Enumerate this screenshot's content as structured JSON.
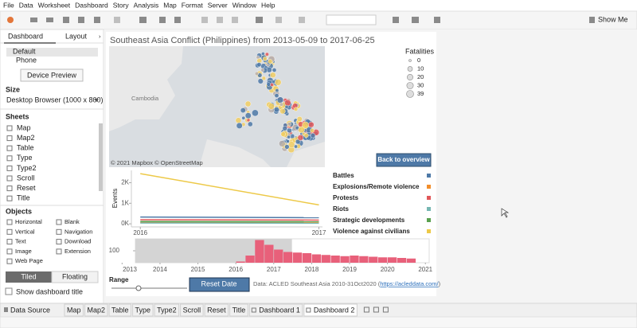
{
  "menu": [
    "File",
    "Data",
    "Worksheet",
    "Dashboard",
    "Story",
    "Analysis",
    "Map",
    "Format",
    "Server",
    "Window",
    "Help"
  ],
  "toolbar": {
    "show_me": "Show Me"
  },
  "left_pane": {
    "tabs": [
      "Dashboard",
      "Layout"
    ],
    "devices": [
      "Default",
      "Phone"
    ],
    "device_preview": "Device Preview",
    "size_heading": "Size",
    "size_value": "Desktop Browser (1000 x 800)",
    "sheets_heading": "Sheets",
    "sheets": [
      "Map",
      "Map2",
      "Table",
      "Type",
      "Type2",
      "Scroll",
      "Reset",
      "Title"
    ],
    "objects_heading": "Objects",
    "objects": [
      "Horizontal",
      "Blank",
      "Vertical",
      "Navigation",
      "Text",
      "Download",
      "Image",
      "Extension",
      "Web Page"
    ],
    "layout_toggle": [
      "Tiled",
      "Floating"
    ],
    "show_title": "Show dashboard title"
  },
  "dashboard": {
    "title": "Southeast Asia Conflict (Philippines) from 2013-05-09 to 2017-06-25",
    "map": {
      "place_label": "Cambodia",
      "attribution": "© 2021 Mapbox © OpenStreetMap",
      "button": "Back to overview",
      "legend_title": "Fatalities",
      "legend_values": [
        0,
        10,
        20,
        30,
        39
      ]
    },
    "range_label": "Range",
    "reset_button": "Reset Date",
    "source": {
      "prefix": "Data: ACLED Southeast Asia 2010-31Oct2020 (",
      "link": "https://acleddata.com/",
      "suffix": ")"
    }
  },
  "chart_data": [
    {
      "type": "line",
      "y_label": "Events",
      "x": [
        2016,
        2017
      ],
      "xlim": [
        2015.95,
        2017.02
      ],
      "xticks": [
        2016,
        2017
      ],
      "ylim": [
        -150,
        2600
      ],
      "yticks": [
        {
          "value": 0,
          "label": "0K"
        },
        {
          "value": 1000,
          "label": "1K"
        },
        {
          "value": 2000,
          "label": "2K"
        }
      ],
      "series": [
        {
          "name": "Battles",
          "color": "#4e79a7",
          "values": [
            330,
            300
          ]
        },
        {
          "name": "Explosions/Remote violence",
          "color": "#f28e2b",
          "values": [
            60,
            50
          ]
        },
        {
          "name": "Protests",
          "color": "#e15759",
          "values": [
            200,
            180
          ]
        },
        {
          "name": "Riots",
          "color": "#76b7b2",
          "values": [
            40,
            30
          ]
        },
        {
          "name": "Strategic developments",
          "color": "#59a14f",
          "values": [
            110,
            100
          ]
        },
        {
          "name": "Violence against civilians",
          "color": "#edc948",
          "values": [
            2440,
            920
          ]
        }
      ]
    },
    {
      "type": "histogram",
      "bins": [
        2016,
        2016.25,
        2016.5,
        2016.75,
        2017,
        2017.25,
        2017.5,
        2017.75,
        2018,
        2018.25,
        2018.5,
        2018.75,
        2019,
        2019.25,
        2019.5,
        2019.75,
        2020,
        2020.25,
        2020.5,
        2020.75
      ],
      "values": [
        10,
        60,
        190,
        150,
        110,
        90,
        85,
        80,
        70,
        65,
        60,
        55,
        60,
        55,
        50,
        45,
        45,
        40,
        35
      ],
      "color": "#e8607a",
      "xlim": [
        2013.35,
        2021.1
      ],
      "xticks": [
        2013,
        2014,
        2015,
        2016,
        2017,
        2018,
        2019,
        2020,
        2021
      ],
      "ylim": [
        0,
        200
      ],
      "yticks": [
        100
      ],
      "selection": [
        2013.35,
        2017.48
      ]
    }
  ],
  "tabs": {
    "data_source": "Data Source",
    "sheets": [
      "Map",
      "Map2",
      "Table",
      "Type",
      "Type2",
      "Scroll",
      "Reset",
      "Title",
      "Dashboard 1",
      "Dashboard 2"
    ]
  }
}
